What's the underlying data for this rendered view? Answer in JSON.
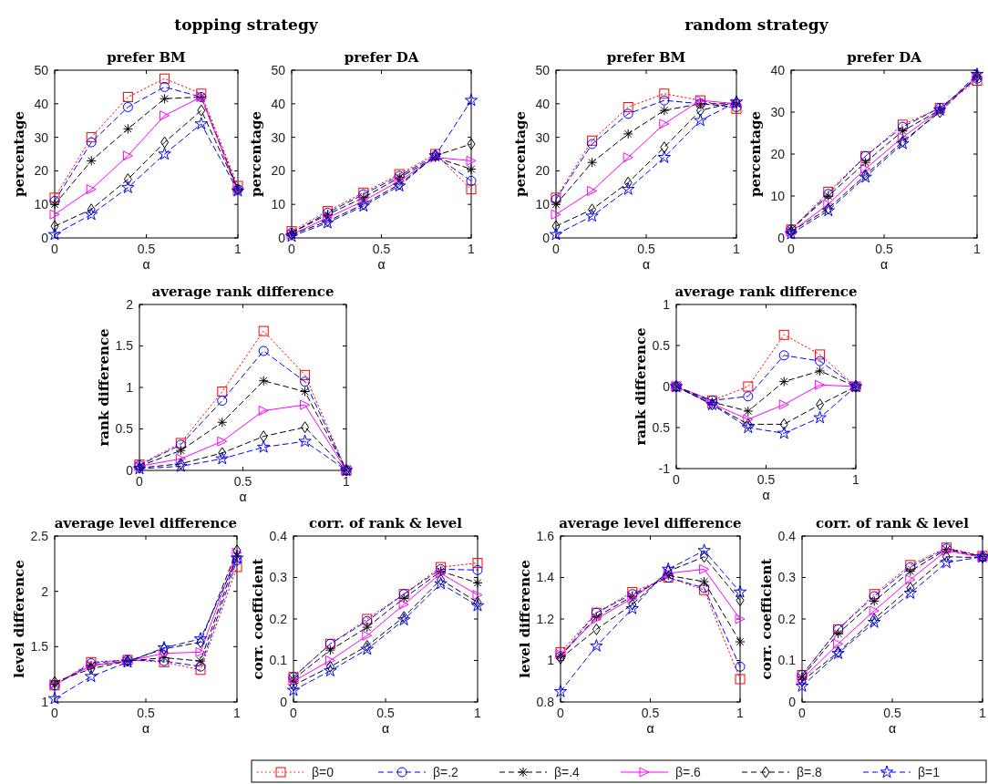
{
  "chart_data": [
    {
      "type": "line",
      "title": "prefer BM",
      "annotations": [
        "topping strategy"
      ],
      "xlabel": "α",
      "ylabel": "percentage",
      "x": [
        0,
        0.2,
        0.4,
        0.6,
        0.8,
        1
      ],
      "xlim": [
        0,
        1
      ],
      "xticks": [
        0,
        0.5,
        1
      ],
      "ylim": [
        0,
        50
      ],
      "yticks": [
        0,
        10,
        20,
        30,
        40,
        50
      ],
      "series": [
        {
          "color": "#ff0000",
          "marker": "square",
          "line_style": "dotted",
          "values": [
            12,
            30,
            42,
            47.5,
            43,
            15.5
          ]
        },
        {
          "color": "#0000ff",
          "marker": "circle",
          "line_style": "dashed",
          "values": [
            11,
            28.5,
            39,
            45,
            42,
            14.5
          ]
        },
        {
          "color": "#000000",
          "marker": "cross",
          "line_style": "dashed",
          "values": [
            10,
            23,
            32.5,
            41.5,
            42,
            14.5
          ]
        },
        {
          "color": "#ff00ff",
          "marker": "triangle",
          "line_style": "solid",
          "values": [
            7,
            14.5,
            24.5,
            36.5,
            42,
            14
          ]
        },
        {
          "color": "#000000",
          "marker": "diamond",
          "line_style": "dashed",
          "values": [
            3.5,
            8.5,
            17.5,
            28.5,
            38,
            14.5
          ]
        },
        {
          "color": "#0000ff",
          "marker": "star",
          "line_style": "dashed",
          "values": [
            1,
            7,
            15,
            25,
            34,
            14
          ]
        }
      ]
    },
    {
      "type": "line",
      "title": "prefer DA",
      "xlabel": "α",
      "ylabel": "percentage",
      "x": [
        0,
        0.2,
        0.4,
        0.6,
        0.8,
        1
      ],
      "xlim": [
        0,
        1
      ],
      "xticks": [
        0,
        0.5,
        1
      ],
      "ylim": [
        0,
        50
      ],
      "yticks": [
        0,
        10,
        20,
        30,
        40,
        50
      ],
      "series": [
        {
          "color": "#ff0000",
          "marker": "square",
          "line_style": "dotted",
          "values": [
            2,
            8,
            13.5,
            19,
            25,
            14.5
          ]
        },
        {
          "color": "#0000ff",
          "marker": "circle",
          "line_style": "dashed",
          "values": [
            1.5,
            7.5,
            13,
            18.5,
            24.5,
            17
          ]
        },
        {
          "color": "#000000",
          "marker": "cross",
          "line_style": "dashed",
          "values": [
            1.5,
            7,
            12,
            18,
            24,
            20.5
          ]
        },
        {
          "color": "#ff00ff",
          "marker": "triangle",
          "line_style": "solid",
          "values": [
            1,
            6,
            11,
            17,
            24,
            23
          ]
        },
        {
          "color": "#000000",
          "marker": "diamond",
          "line_style": "dashed",
          "values": [
            1,
            5,
            10,
            16,
            24.5,
            28
          ]
        },
        {
          "color": "#0000ff",
          "marker": "star",
          "line_style": "dashed",
          "values": [
            0.5,
            4.5,
            9.5,
            15.5,
            24.5,
            41
          ]
        }
      ]
    },
    {
      "type": "line",
      "title": "prefer BM",
      "annotations": [
        "random strategy"
      ],
      "xlabel": "α",
      "ylabel": "percentage",
      "x": [
        0,
        0.2,
        0.4,
        0.6,
        0.8,
        1
      ],
      "xlim": [
        0,
        1
      ],
      "xticks": [
        0,
        0.5,
        1
      ],
      "ylim": [
        0,
        50
      ],
      "yticks": [
        0,
        10,
        20,
        30,
        40,
        50
      ],
      "series": [
        {
          "color": "#ff0000",
          "marker": "square",
          "line_style": "dotted",
          "values": [
            12,
            29,
            39,
            43,
            41,
            38.5
          ]
        },
        {
          "color": "#0000ff",
          "marker": "circle",
          "line_style": "dashed",
          "values": [
            11.5,
            28,
            37,
            41,
            40,
            39
          ]
        },
        {
          "color": "#000000",
          "marker": "cross",
          "line_style": "dashed",
          "values": [
            10,
            22.5,
            31,
            38,
            40,
            40
          ]
        },
        {
          "color": "#ff00ff",
          "marker": "triangle",
          "line_style": "solid",
          "values": [
            7,
            14,
            24,
            34,
            41,
            40
          ]
        },
        {
          "color": "#000000",
          "marker": "diamond",
          "line_style": "dashed",
          "values": [
            3.5,
            8.5,
            16.5,
            27,
            38,
            40.5
          ]
        },
        {
          "color": "#0000ff",
          "marker": "star",
          "line_style": "dashed",
          "values": [
            1,
            6.5,
            14.5,
            24,
            35,
            40.5
          ]
        }
      ]
    },
    {
      "type": "line",
      "title": "prefer DA",
      "xlabel": "α",
      "ylabel": "percentage",
      "x": [
        0,
        0.2,
        0.4,
        0.6,
        0.8,
        1
      ],
      "xlim": [
        0,
        1
      ],
      "xticks": [
        0,
        0.5,
        1
      ],
      "ylim": [
        0,
        40
      ],
      "yticks": [
        0,
        10,
        20,
        30,
        40
      ],
      "series": [
        {
          "color": "#ff0000",
          "marker": "square",
          "line_style": "dotted",
          "values": [
            2,
            11,
            19.5,
            27,
            31,
            37.5
          ]
        },
        {
          "color": "#0000ff",
          "marker": "circle",
          "line_style": "dashed",
          "values": [
            2,
            10.5,
            19.5,
            26.5,
            31,
            38
          ]
        },
        {
          "color": "#000000",
          "marker": "cross",
          "line_style": "dashed",
          "values": [
            2,
            10,
            18,
            25.5,
            30.5,
            38.5
          ]
        },
        {
          "color": "#ff00ff",
          "marker": "triangle",
          "line_style": "solid",
          "values": [
            1.5,
            8,
            16.5,
            24,
            30.5,
            38.5
          ]
        },
        {
          "color": "#000000",
          "marker": "diamond",
          "line_style": "dashed",
          "values": [
            1.5,
            7,
            15,
            23,
            30,
            38.5
          ]
        },
        {
          "color": "#0000ff",
          "marker": "star",
          "line_style": "dashed",
          "values": [
            1,
            6.5,
            14.5,
            22.5,
            30.5,
            39
          ]
        }
      ]
    },
    {
      "type": "line",
      "title": "average rank difference",
      "xlabel": "α",
      "ylabel": "rank difference",
      "x": [
        0,
        0.2,
        0.4,
        0.6,
        0.8,
        1
      ],
      "xlim": [
        0,
        1
      ],
      "xticks": [
        0,
        0.5,
        1
      ],
      "ylim": [
        0,
        2
      ],
      "yticks": [
        0,
        0.5,
        1,
        1.5,
        2
      ],
      "series": [
        {
          "color": "#ff0000",
          "marker": "square",
          "line_style": "dotted",
          "values": [
            0.07,
            0.33,
            0.95,
            1.68,
            1.15,
            0
          ]
        },
        {
          "color": "#0000ff",
          "marker": "circle",
          "line_style": "dashed",
          "values": [
            0.06,
            0.31,
            0.84,
            1.44,
            1.07,
            0
          ]
        },
        {
          "color": "#000000",
          "marker": "cross",
          "line_style": "dashed",
          "values": [
            0.05,
            0.24,
            0.58,
            1.08,
            0.95,
            0
          ]
        },
        {
          "color": "#ff00ff",
          "marker": "triangle",
          "line_style": "solid",
          "values": [
            0.05,
            0.14,
            0.35,
            0.72,
            0.79,
            0
          ]
        },
        {
          "color": "#000000",
          "marker": "diamond",
          "line_style": "dashed",
          "values": [
            0.03,
            0.08,
            0.21,
            0.41,
            0.52,
            0
          ]
        },
        {
          "color": "#0000ff",
          "marker": "star",
          "line_style": "dashed",
          "values": [
            0.02,
            0.05,
            0.14,
            0.28,
            0.35,
            0
          ]
        }
      ]
    },
    {
      "type": "line",
      "title": "average rank difference",
      "xlabel": "α",
      "ylabel": "rank difference",
      "x": [
        0,
        0.2,
        0.4,
        0.6,
        0.8,
        1
      ],
      "xlim": [
        0,
        1
      ],
      "xticks": [
        0,
        0.5,
        1
      ],
      "ylim": [
        -1,
        1
      ],
      "yticks": [
        -1,
        {
          "value": -0.5,
          "label": "0.5"
        },
        0,
        0.5,
        1
      ],
      "series": [
        {
          "color": "#ff0000",
          "marker": "square",
          "line_style": "dotted",
          "values": [
            0,
            -0.17,
            0,
            0.63,
            0.39,
            0
          ]
        },
        {
          "color": "#0000ff",
          "marker": "circle",
          "line_style": "dashed",
          "values": [
            0,
            -0.17,
            -0.12,
            0.38,
            0.31,
            0
          ]
        },
        {
          "color": "#000000",
          "marker": "cross",
          "line_style": "dashed",
          "values": [
            0,
            -0.19,
            -0.3,
            0.06,
            0.19,
            0
          ]
        },
        {
          "color": "#ff00ff",
          "marker": "triangle",
          "line_style": "solid",
          "values": [
            0,
            -0.21,
            -0.4,
            -0.22,
            0.02,
            0
          ]
        },
        {
          "color": "#000000",
          "marker": "diamond",
          "line_style": "dashed",
          "values": [
            0,
            -0.22,
            -0.46,
            -0.46,
            -0.22,
            0
          ]
        },
        {
          "color": "#0000ff",
          "marker": "star",
          "line_style": "dashed",
          "values": [
            0,
            -0.22,
            -0.5,
            -0.57,
            -0.38,
            0
          ]
        }
      ]
    },
    {
      "type": "line",
      "title": "average level difference",
      "xlabel": "α",
      "ylabel": "level difference",
      "x": [
        0,
        0.2,
        0.4,
        0.6,
        0.8,
        1
      ],
      "xlim": [
        0,
        1
      ],
      "xticks": [
        0,
        0.5,
        1
      ],
      "ylim": [
        1,
        2.5
      ],
      "yticks": [
        1,
        1.5,
        2,
        2.5
      ],
      "series": [
        {
          "color": "#ff0000",
          "marker": "square",
          "line_style": "dotted",
          "values": [
            1.15,
            1.36,
            1.38,
            1.36,
            1.29,
            2.22
          ]
        },
        {
          "color": "#0000ff",
          "marker": "circle",
          "line_style": "dashed",
          "values": [
            1.15,
            1.35,
            1.38,
            1.37,
            1.32,
            2.28
          ]
        },
        {
          "color": "#000000",
          "marker": "cross",
          "line_style": "dashed",
          "values": [
            1.16,
            1.33,
            1.37,
            1.4,
            1.37,
            2.32
          ]
        },
        {
          "color": "#ff00ff",
          "marker": "triangle",
          "line_style": "solid",
          "values": [
            1.16,
            1.33,
            1.37,
            1.44,
            1.45,
            2.35
          ]
        },
        {
          "color": "#000000",
          "marker": "diamond",
          "line_style": "dashed",
          "values": [
            1.18,
            1.3,
            1.37,
            1.48,
            1.54,
            2.37
          ]
        },
        {
          "color": "#0000ff",
          "marker": "star",
          "line_style": "dashed",
          "values": [
            1.03,
            1.23,
            1.36,
            1.49,
            1.57,
            2.3
          ]
        }
      ]
    },
    {
      "type": "line",
      "title": "corr. of rank & level",
      "xlabel": "α",
      "ylabel": "corr. coefficient",
      "x": [
        0,
        0.2,
        0.4,
        0.6,
        0.8,
        1
      ],
      "xlim": [
        0,
        1
      ],
      "xticks": [
        0,
        0.5,
        1
      ],
      "ylim": [
        0,
        0.4
      ],
      "yticks": [
        0,
        0.1,
        0.2,
        0.3,
        0.4
      ],
      "series": [
        {
          "color": "#ff0000",
          "marker": "square",
          "line_style": "dotted",
          "values": [
            0.06,
            0.14,
            0.2,
            0.26,
            0.325,
            0.335
          ]
        },
        {
          "color": "#0000ff",
          "marker": "circle",
          "line_style": "dashed",
          "values": [
            0.06,
            0.14,
            0.195,
            0.26,
            0.32,
            0.318
          ]
        },
        {
          "color": "#000000",
          "marker": "cross",
          "line_style": "dashed",
          "values": [
            0.055,
            0.125,
            0.18,
            0.25,
            0.315,
            0.287
          ]
        },
        {
          "color": "#ff00ff",
          "marker": "triangle",
          "line_style": "solid",
          "values": [
            0.05,
            0.1,
            0.16,
            0.235,
            0.31,
            0.258
          ]
        },
        {
          "color": "#000000",
          "marker": "diamond",
          "line_style": "dashed",
          "values": [
            0.04,
            0.085,
            0.135,
            0.205,
            0.295,
            0.24
          ]
        },
        {
          "color": "#0000ff",
          "marker": "star",
          "line_style": "dashed",
          "values": [
            0.028,
            0.075,
            0.127,
            0.198,
            0.285,
            0.232
          ]
        }
      ]
    },
    {
      "type": "line",
      "title": "average level difference",
      "xlabel": "α",
      "ylabel": "level difference",
      "x": [
        0,
        0.2,
        0.4,
        0.6,
        0.8,
        1
      ],
      "xlim": [
        0,
        1
      ],
      "xticks": [
        0,
        0.5,
        1
      ],
      "ylim": [
        0.8,
        1.6
      ],
      "yticks": [
        0.8,
        1,
        1.2,
        1.4,
        1.6
      ],
      "series": [
        {
          "color": "#ff0000",
          "marker": "square",
          "line_style": "dotted",
          "values": [
            1.04,
            1.23,
            1.33,
            1.4,
            1.34,
            0.91
          ]
        },
        {
          "color": "#0000ff",
          "marker": "circle",
          "line_style": "dashed",
          "values": [
            1.02,
            1.23,
            1.32,
            1.4,
            1.35,
            0.97
          ]
        },
        {
          "color": "#000000",
          "marker": "cross",
          "line_style": "dashed",
          "values": [
            1.02,
            1.21,
            1.31,
            1.41,
            1.38,
            1.09
          ]
        },
        {
          "color": "#ff00ff",
          "marker": "triangle",
          "line_style": "solid",
          "values": [
            1.03,
            1.2,
            1.3,
            1.42,
            1.44,
            1.2
          ]
        },
        {
          "color": "#000000",
          "marker": "diamond",
          "line_style": "dashed",
          "values": [
            1.01,
            1.15,
            1.27,
            1.43,
            1.5,
            1.29
          ]
        },
        {
          "color": "#0000ff",
          "marker": "star",
          "line_style": "dashed",
          "values": [
            0.85,
            1.07,
            1.25,
            1.44,
            1.53,
            1.33
          ]
        }
      ]
    },
    {
      "type": "line",
      "title": "corr. of rank & level",
      "xlabel": "α",
      "ylabel": "corr. coefficient",
      "legend": "bottom",
      "x": [
        0,
        0.2,
        0.4,
        0.6,
        0.8,
        1
      ],
      "xlim": [
        0,
        1
      ],
      "xticks": [
        0,
        0.5,
        1
      ],
      "ylim": [
        0,
        0.4
      ],
      "yticks": [
        0,
        0.1,
        0.2,
        0.3,
        0.4
      ],
      "series": [
        {
          "name": "β=0",
          "color": "#ff0000",
          "marker": "square",
          "line_style": "dotted",
          "values": [
            0.065,
            0.175,
            0.26,
            0.33,
            0.372,
            0.352
          ]
        },
        {
          "name": "β=.2",
          "color": "#0000ff",
          "marker": "circle",
          "line_style": "dashed",
          "values": [
            0.065,
            0.175,
            0.255,
            0.325,
            0.37,
            0.35
          ]
        },
        {
          "name": "β=.4",
          "color": "#000000",
          "marker": "cross",
          "line_style": "dashed",
          "values": [
            0.06,
            0.165,
            0.243,
            0.315,
            0.368,
            0.35
          ]
        },
        {
          "name": "β=.6",
          "color": "#ff00ff",
          "marker": "triangle",
          "line_style": "solid",
          "values": [
            0.055,
            0.14,
            0.22,
            0.295,
            0.365,
            0.348
          ]
        },
        {
          "name": "β=.8",
          "color": "#000000",
          "marker": "diamond",
          "line_style": "dashed",
          "values": [
            0.05,
            0.12,
            0.2,
            0.275,
            0.35,
            0.348
          ]
        },
        {
          "name": "β=1",
          "color": "#0000ff",
          "marker": "star",
          "line_style": "dashed",
          "values": [
            0.038,
            0.117,
            0.192,
            0.262,
            0.336,
            0.35
          ]
        }
      ]
    }
  ]
}
